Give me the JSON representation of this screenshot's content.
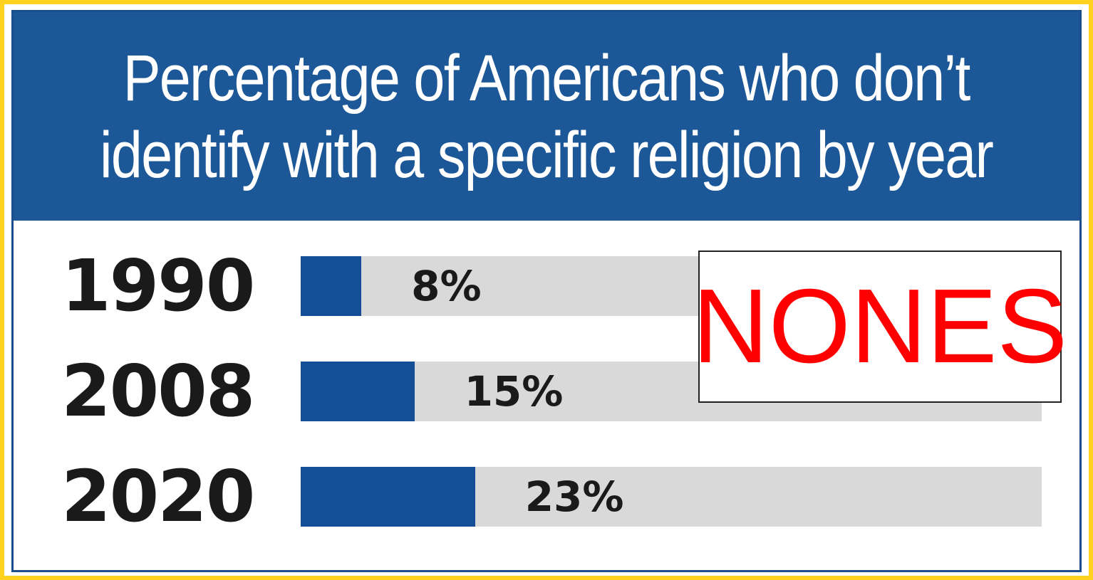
{
  "chart_data": {
    "type": "bar",
    "title_lines": [
      "Percentage of Americans who don’t",
      "identify with a specific religion by year"
    ],
    "categories": [
      "1990",
      "2008",
      "2020"
    ],
    "values": [
      8,
      15,
      23
    ],
    "value_labels": [
      "8%",
      "15%",
      "23%"
    ],
    "orientation": "horizontal",
    "xlim": [
      0,
      100
    ],
    "grid": false,
    "colors": {
      "bar": "#134e96",
      "track": "#d9d9d9",
      "header": "#1c5797",
      "border": "#ffd21f"
    }
  },
  "annotation": {
    "text": "NONES",
    "color": "#ff0000"
  }
}
